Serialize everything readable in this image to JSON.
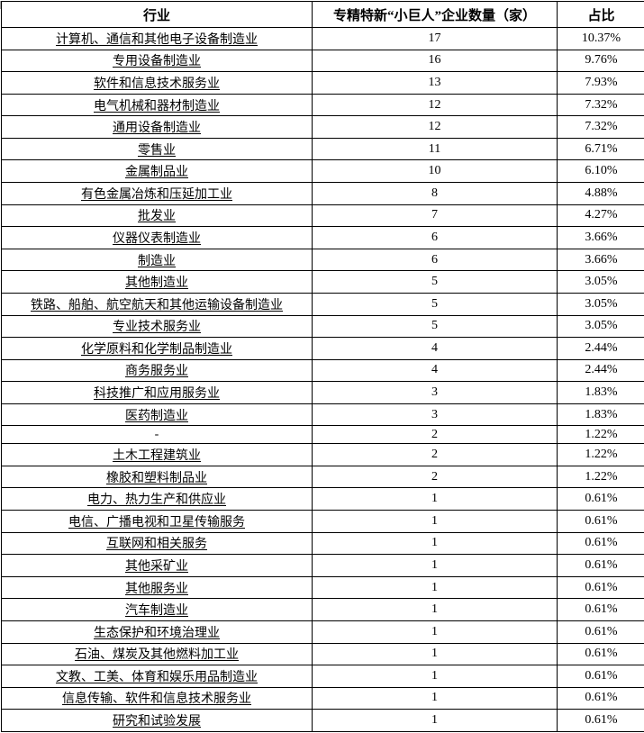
{
  "chart_data": {
    "type": "table",
    "title": "",
    "columns": [
      "行业",
      "专精特新“小巨人”企业数量（家）",
      "占比"
    ],
    "rows": [
      {
        "industry": "计算机、通信和其他电子设备制造业",
        "count": 17,
        "share": "10.37%"
      },
      {
        "industry": "专用设备制造业",
        "count": 16,
        "share": "9.76%"
      },
      {
        "industry": "软件和信息技术服务业",
        "count": 13,
        "share": "7.93%"
      },
      {
        "industry": "电气机械和器材制造业",
        "count": 12,
        "share": "7.32%"
      },
      {
        "industry": "通用设备制造业",
        "count": 12,
        "share": "7.32%"
      },
      {
        "industry": "零售业",
        "count": 11,
        "share": "6.71%"
      },
      {
        "industry": "金属制品业",
        "count": 10,
        "share": "6.10%"
      },
      {
        "industry": "有色金属冶炼和压延加工业",
        "count": 8,
        "share": "4.88%"
      },
      {
        "industry": "批发业",
        "count": 7,
        "share": "4.27%"
      },
      {
        "industry": "仪器仪表制造业",
        "count": 6,
        "share": "3.66%"
      },
      {
        "industry": "制造业",
        "count": 6,
        "share": "3.66%"
      },
      {
        "industry": "其他制造业",
        "count": 5,
        "share": "3.05%"
      },
      {
        "industry": "铁路、船舶、航空航天和其他运输设备制造业",
        "count": 5,
        "share": "3.05%"
      },
      {
        "industry": "专业技术服务业",
        "count": 5,
        "share": "3.05%"
      },
      {
        "industry": "化学原料和化学制品制造业",
        "count": 4,
        "share": "2.44%"
      },
      {
        "industry": "商务服务业",
        "count": 4,
        "share": "2.44%"
      },
      {
        "industry": "科技推广和应用服务业",
        "count": 3,
        "share": "1.83%"
      },
      {
        "industry": "医药制造业",
        "count": 3,
        "share": "1.83%"
      },
      {
        "industry": "-",
        "count": 2,
        "share": "1.22%"
      },
      {
        "industry": "土木工程建筑业",
        "count": 2,
        "share": "1.22%"
      },
      {
        "industry": "橡胶和塑料制品业",
        "count": 2,
        "share": "1.22%"
      },
      {
        "industry": "电力、热力生产和供应业",
        "count": 1,
        "share": "0.61%"
      },
      {
        "industry": "电信、广播电视和卫星传输服务",
        "count": 1,
        "share": "0.61%"
      },
      {
        "industry": "互联网和相关服务",
        "count": 1,
        "share": "0.61%"
      },
      {
        "industry": "其他采矿业",
        "count": 1,
        "share": "0.61%"
      },
      {
        "industry": "其他服务业",
        "count": 1,
        "share": "0.61%"
      },
      {
        "industry": "汽车制造业",
        "count": 1,
        "share": "0.61%"
      },
      {
        "industry": "生态保护和环境治理业",
        "count": 1,
        "share": "0.61%"
      },
      {
        "industry": "石油、煤炭及其他燃料加工业",
        "count": 1,
        "share": "0.61%"
      },
      {
        "industry": "文教、工美、体育和娱乐用品制造业",
        "count": 1,
        "share": "0.61%"
      },
      {
        "industry": "信息传输、软件和信息技术服务业",
        "count": 1,
        "share": "0.61%"
      },
      {
        "industry": "研究和试验发展",
        "count": 1,
        "share": "0.61%"
      }
    ],
    "layout": {
      "grid": "on",
      "border_color": "#000000",
      "text_color": "#000000",
      "background_color": "#ffffff"
    }
  }
}
